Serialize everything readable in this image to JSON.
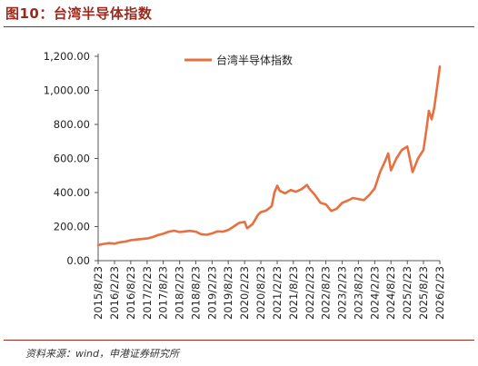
{
  "page": {
    "figure_title": "图10：台湾半导体指数",
    "source": "资料来源：wind，申港证券研究所",
    "accent_color": "#9a2a1e"
  },
  "chart_data": {
    "type": "line",
    "title": "",
    "xlabel": "",
    "ylabel": "",
    "ylim": [
      0,
      1200
    ],
    "yticks": [
      0,
      200,
      400,
      600,
      800,
      1000,
      1200
    ],
    "ytick_labels": [
      "0.00",
      "200.00",
      "400.00",
      "600.00",
      "800.00",
      "1,000.00",
      "1,200.00"
    ],
    "xticks": [
      "2015/8/23",
      "2016/2/23",
      "2016/8/23",
      "2017/2/23",
      "2017/8/23",
      "2018/2/23",
      "2018/8/23",
      "2019/2/23",
      "2019/8/23",
      "2020/2/23",
      "2020/8/23",
      "2021/2/23",
      "2021/8/23",
      "2022/2/23",
      "2022/8/23",
      "2023/2/23",
      "2023/8/23",
      "2024/2/23",
      "2024/8/23",
      "2025/2/23",
      "2025/8/23",
      "2026/2/23"
    ],
    "x_range": [
      "2015/8/23",
      "2026/2/23"
    ],
    "legend_position": "top-center",
    "grid": false,
    "series": [
      {
        "name": "台湾半导体指数",
        "color": "#e8703e",
        "points": [
          [
            "2015/8/23",
            92
          ],
          [
            "2015/10/23",
            98
          ],
          [
            "2015/12/23",
            103
          ],
          [
            "2016/2/23",
            100
          ],
          [
            "2016/4/23",
            108
          ],
          [
            "2016/6/23",
            112
          ],
          [
            "2016/8/23",
            120
          ],
          [
            "2016/10/23",
            124
          ],
          [
            "2016/12/23",
            127
          ],
          [
            "2017/2/23",
            130
          ],
          [
            "2017/4/23",
            138
          ],
          [
            "2017/6/23",
            150
          ],
          [
            "2017/8/23",
            158
          ],
          [
            "2017/10/23",
            170
          ],
          [
            "2017/12/23",
            176
          ],
          [
            "2018/2/23",
            168
          ],
          [
            "2018/4/23",
            172
          ],
          [
            "2018/6/23",
            175
          ],
          [
            "2018/8/23",
            170
          ],
          [
            "2018/10/23",
            155
          ],
          [
            "2018/12/23",
            152
          ],
          [
            "2019/2/23",
            160
          ],
          [
            "2019/4/23",
            172
          ],
          [
            "2019/6/23",
            170
          ],
          [
            "2019/8/23",
            180
          ],
          [
            "2019/10/23",
            200
          ],
          [
            "2019/12/23",
            222
          ],
          [
            "2020/2/23",
            228
          ],
          [
            "2020/3/23",
            190
          ],
          [
            "2020/5/23",
            215
          ],
          [
            "2020/7/23",
            270
          ],
          [
            "2020/8/23",
            285
          ],
          [
            "2020/10/23",
            295
          ],
          [
            "2020/12/23",
            320
          ],
          [
            "2021/1/23",
            400
          ],
          [
            "2021/2/23",
            440
          ],
          [
            "2021/3/23",
            410
          ],
          [
            "2021/5/23",
            395
          ],
          [
            "2021/7/23",
            415
          ],
          [
            "2021/9/23",
            405
          ],
          [
            "2021/11/23",
            420
          ],
          [
            "2022/1/23",
            445
          ],
          [
            "2022/2/23",
            420
          ],
          [
            "2022/4/23",
            385
          ],
          [
            "2022/6/23",
            340
          ],
          [
            "2022/8/23",
            330
          ],
          [
            "2022/10/23",
            292
          ],
          [
            "2022/12/23",
            305
          ],
          [
            "2023/2/23",
            340
          ],
          [
            "2023/4/23",
            352
          ],
          [
            "2023/6/23",
            368
          ],
          [
            "2023/8/23",
            362
          ],
          [
            "2023/10/23",
            355
          ],
          [
            "2023/12/23",
            385
          ],
          [
            "2024/2/23",
            425
          ],
          [
            "2024/4/23",
            520
          ],
          [
            "2024/6/23",
            590
          ],
          [
            "2024/7/23",
            630
          ],
          [
            "2024/8/23",
            530
          ],
          [
            "2024/10/23",
            600
          ],
          [
            "2024/12/23",
            650
          ],
          [
            "2025/2/23",
            670
          ],
          [
            "2025/3/23",
            600
          ],
          [
            "2025/4/23",
            520
          ],
          [
            "2025/6/23",
            600
          ],
          [
            "2025/8/23",
            650
          ],
          [
            "2025/9/23",
            760
          ],
          [
            "2025/10/23",
            880
          ],
          [
            "2025/11/23",
            830
          ],
          [
            "2025/12/23",
            900
          ],
          [
            "2026/1/23",
            1020
          ],
          [
            "2026/2/23",
            1140
          ]
        ]
      }
    ]
  }
}
